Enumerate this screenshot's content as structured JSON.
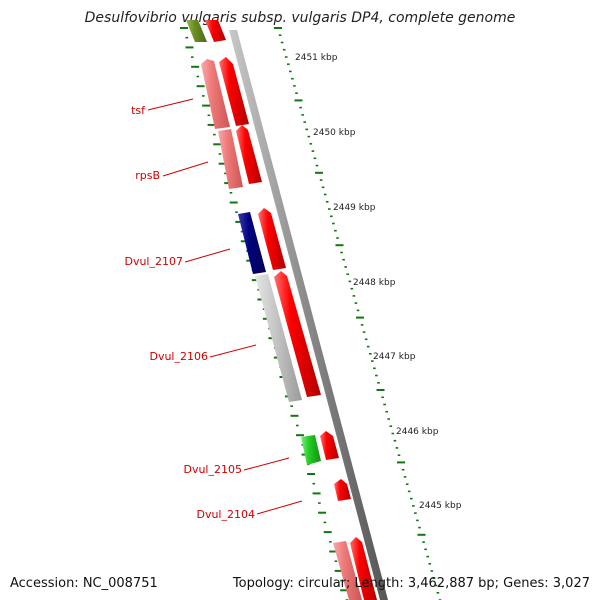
{
  "title": "Desulfovibrio vulgaris subsp. vulgaris DP4, complete genome",
  "accession": "Accession: NC_008751",
  "summary": "Topology: circular; Length: 3,462,887 bp; Genes: 3,027",
  "kbp_ticks": [
    "2451 kbp",
    "2450 kbp",
    "2449 kbp",
    "2448 kbp",
    "2447 kbp",
    "2446 kbp",
    "2445 kbp"
  ],
  "genes": [
    "tsf",
    "rpsB",
    "Dvul_2107",
    "Dvul_2106",
    "Dvul_2105",
    "Dvul_2104"
  ],
  "colors": {
    "cds_red": "#ff0000",
    "cds_pink": "#ee7777",
    "cds_gray": "#c8c8c8",
    "cds_navy": "#000080",
    "cds_green": "#22cc22",
    "cds_olive": "#6b8e23",
    "tick_green": "#117711",
    "label_red": "#d00000",
    "backbone": "#888888"
  }
}
